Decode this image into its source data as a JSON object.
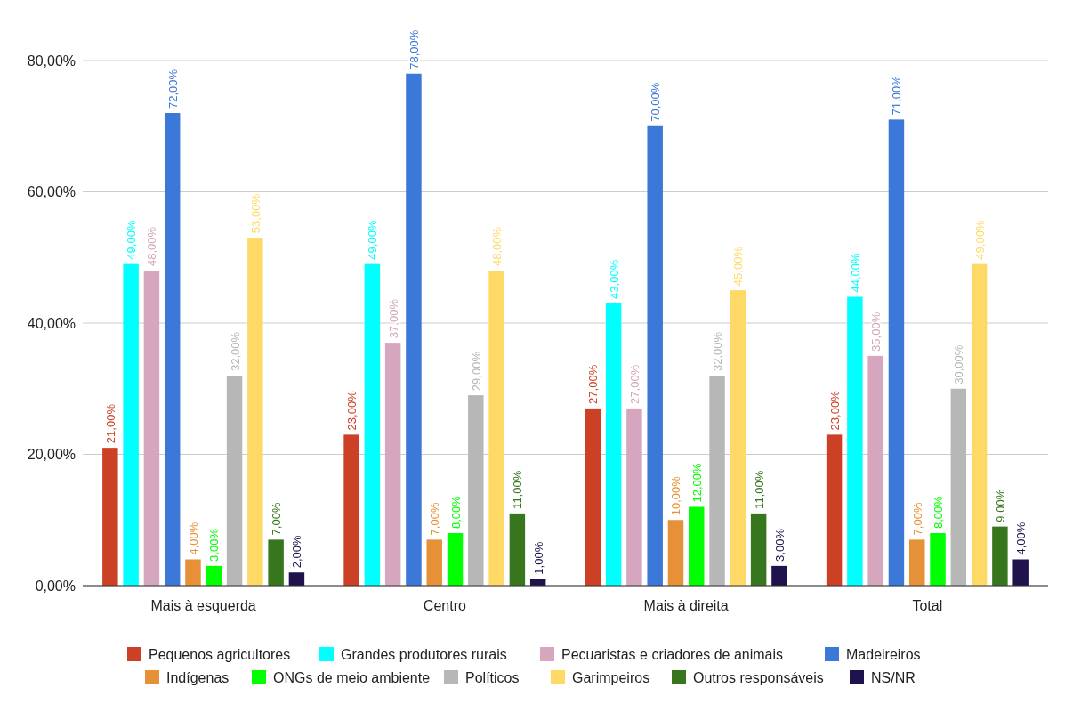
{
  "chart_data": {
    "type": "bar",
    "categories": [
      "Mais à esquerda",
      "Centro",
      "Mais à direita",
      "Total"
    ],
    "ylim": [
      0,
      80
    ],
    "yticks": [
      {
        "value": 0,
        "label": "0,00%"
      },
      {
        "value": 20,
        "label": "20,00%"
      },
      {
        "value": 40,
        "label": "40,00%"
      },
      {
        "value": 60,
        "label": "60,00%"
      },
      {
        "value": 80,
        "label": "80,00%"
      }
    ],
    "grid": "y",
    "legend": "bottom",
    "series": [
      {
        "name": "Pequenos agricultores",
        "color": "#cc4125",
        "values": [
          21,
          23,
          27,
          23
        ],
        "value_labels": [
          "21,00%",
          "23,00%",
          "27,00%",
          "23,00%"
        ]
      },
      {
        "name": "Grandes produtores rurais",
        "color": "#00ffff",
        "values": [
          49,
          49,
          43,
          44
        ],
        "value_labels": [
          "49,00%",
          "49,00%",
          "43,00%",
          "44,00%"
        ]
      },
      {
        "name": "Pecuaristas e criadores de animais",
        "color": "#d5a6bd",
        "values": [
          48,
          37,
          27,
          35
        ],
        "value_labels": [
          "48,00%",
          "37,00%",
          "27,00%",
          "35,00%"
        ]
      },
      {
        "name": "Madeireiros",
        "color": "#3c78d8",
        "values": [
          72,
          78,
          70,
          71
        ],
        "value_labels": [
          "72,00%",
          "78,00%",
          "70,00%",
          "71,00%"
        ]
      },
      {
        "name": "Indígenas",
        "color": "#e69138",
        "values": [
          4,
          7,
          10,
          7
        ],
        "value_labels": [
          "4,00%",
          "7,00%",
          "10,00%",
          "7,00%"
        ]
      },
      {
        "name": "ONGs de meio ambiente",
        "color": "#00ff00",
        "values": [
          3,
          8,
          12,
          8
        ],
        "value_labels": [
          "3,00%",
          "8,00%",
          "12,00%",
          "8,00%"
        ]
      },
      {
        "name": "Políticos",
        "color": "#b7b7b7",
        "values": [
          32,
          29,
          32,
          30
        ],
        "value_labels": [
          "32,00%",
          "29,00%",
          "32,00%",
          "30,00%"
        ]
      },
      {
        "name": "Garimpeiros",
        "color": "#ffd966",
        "values": [
          53,
          48,
          45,
          49
        ],
        "value_labels": [
          "53,00%",
          "48,00%",
          "45,00%",
          "49,00%"
        ]
      },
      {
        "name": "Outros responsáveis",
        "color": "#38761d",
        "values": [
          7,
          11,
          11,
          9
        ],
        "value_labels": [
          "7,00%",
          "11,00%",
          "11,00%",
          "9,00%"
        ]
      },
      {
        "name": "NS/NR",
        "color": "#20124d",
        "values": [
          2,
          1,
          3,
          4
        ],
        "value_labels": [
          "2,00%",
          "1,00%",
          "3,00%",
          "4,00%"
        ]
      }
    ]
  }
}
